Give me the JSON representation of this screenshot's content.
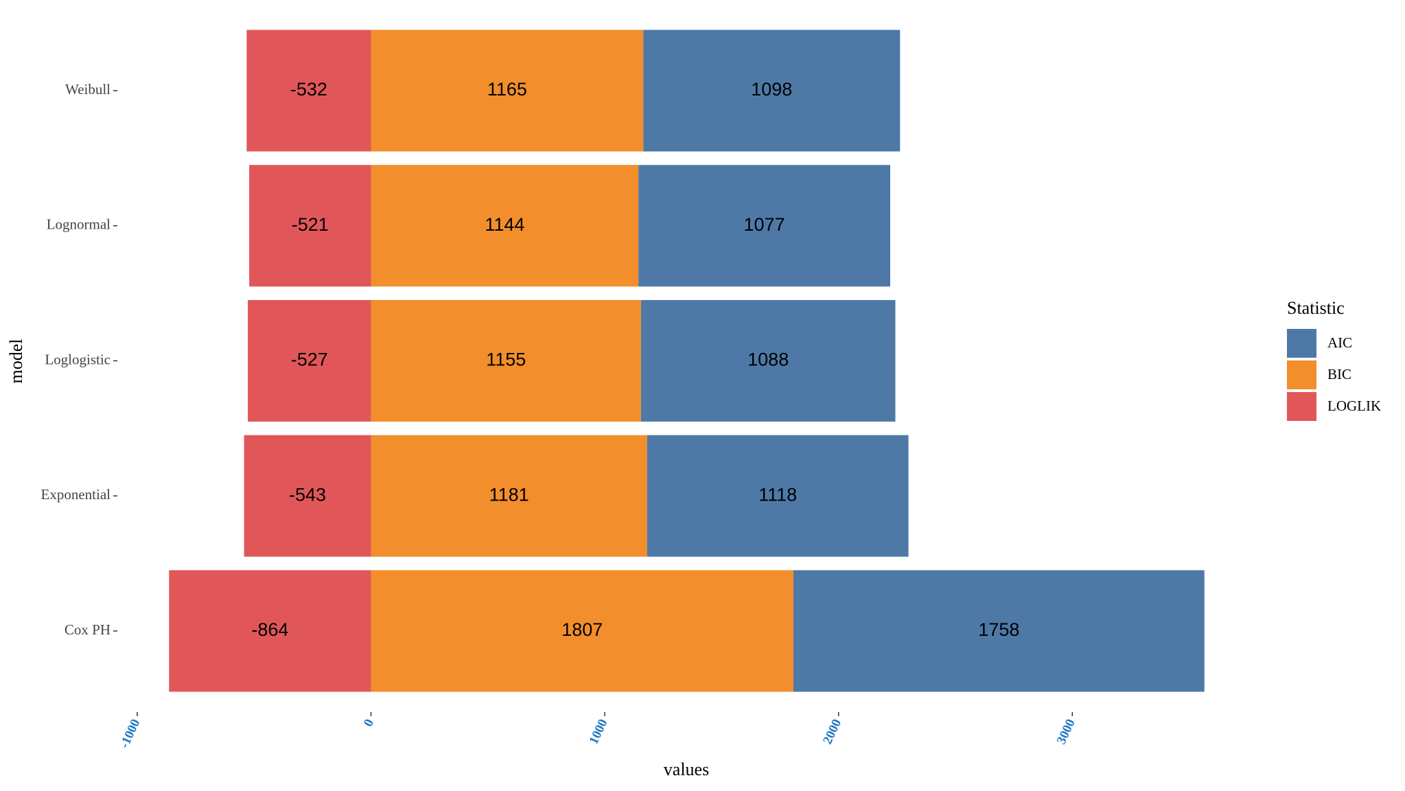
{
  "chart_data": {
    "type": "stacked-barh",
    "xlabel": "values",
    "ylabel": "model",
    "legend_title": "Statistic",
    "legend_position": "right",
    "categories": [
      "Weibull",
      "Lognormal",
      "Loglogistic",
      "Exponential",
      "Cox PH"
    ],
    "series": [
      {
        "name": "AIC",
        "color": "#4e79a7",
        "values": [
          1098,
          1077,
          1088,
          1118,
          1758
        ]
      },
      {
        "name": "BIC",
        "color": "#f28e2b",
        "values": [
          1165,
          1144,
          1155,
          1181,
          1807
        ]
      },
      {
        "name": "LOGLIK",
        "color": "#e15759",
        "values": [
          -532,
          -521,
          -527,
          -543,
          -864
        ]
      }
    ],
    "xlim": [
      -1085,
      3786
    ],
    "xticks": [
      -1000,
      0,
      1000,
      2000,
      3000
    ],
    "grid": false
  }
}
